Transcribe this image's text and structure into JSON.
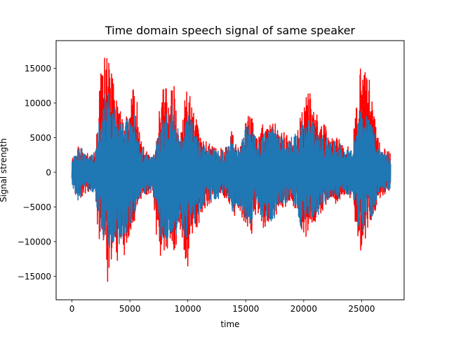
{
  "chart_data": {
    "type": "line",
    "title": "Time domain speech signal of same speaker",
    "xlabel": "time",
    "ylabel": "Signal strength",
    "xlim": [
      -1365,
      28665
    ],
    "ylim": [
      -18400,
      19000
    ],
    "x_ticks": [
      0,
      5000,
      10000,
      15000,
      20000,
      25000
    ],
    "y_ticks": [
      -15000,
      -10000,
      -5000,
      0,
      5000,
      10000,
      15000
    ],
    "x_tick_labels": [
      "0",
      "5000",
      "10000",
      "15000",
      "20000",
      "25000"
    ],
    "y_tick_labels": [
      "−15000",
      "−10000",
      "−5000",
      "0",
      "5000",
      "10000",
      "15000"
    ],
    "grid": false,
    "legend": "none",
    "x_sample_step": 250,
    "series": [
      {
        "color": "#ff0000",
        "envelope_upper": [
          2000,
          2200,
          3800,
          3900,
          3200,
          2900,
          2600,
          2800,
          3000,
          9000,
          15000,
          16800,
          16600,
          15500,
          15200,
          11800,
          10500,
          8800,
          7500,
          9000,
          10800,
          13000,
          12000,
          8500,
          5000,
          3400,
          3000,
          2500,
          2400,
          5000,
          9500,
          12500,
          14500,
          11000,
          10500,
          15000,
          9500,
          6000,
          5800,
          13200,
          12200,
          11500,
          9500,
          8500,
          6000,
          5000,
          4600,
          4200,
          4500,
          3800,
          3500,
          3400,
          3600,
          3800,
          4000,
          6500,
          6000,
          3500,
          3800,
          6500,
          7200,
          8500,
          8400,
          6500,
          5500,
          5500,
          7800,
          6700,
          8200,
          8500,
          9000,
          6000,
          6000,
          6000,
          5800,
          5500,
          5800,
          6500,
          6200,
          9000,
          10500,
          12500,
          11500,
          11000,
          10500,
          10000,
          8200,
          7200,
          6500,
          5200,
          4900,
          5500,
          5000,
          4600,
          3600,
          3800,
          3500,
          3400,
          11800,
          12500,
          17500,
          17000,
          16500,
          16000,
          14500,
          6000,
          4500,
          3200,
          3500,
          3200,
          2800
        ],
        "envelope_lower": [
          -2500,
          -3000,
          -3500,
          -3800,
          -3200,
          -3000,
          -2900,
          -3300,
          -3500,
          -9000,
          -11000,
          -12500,
          -16800,
          -15000,
          -12500,
          -12000,
          -13200,
          -11500,
          -12800,
          -10000,
          -9500,
          -8000,
          -6500,
          -5000,
          -4000,
          -3500,
          -3200,
          -3000,
          -2900,
          -9000,
          -12000,
          -13200,
          -11500,
          -12000,
          -9500,
          -11000,
          -12000,
          -8000,
          -10500,
          -12500,
          -14500,
          -8000,
          -9500,
          -9000,
          -7500,
          -6000,
          -5200,
          -5000,
          -4500,
          -4200,
          -4400,
          -4000,
          -3900,
          -4000,
          -4500,
          -6000,
          -6500,
          -5200,
          -5800,
          -7000,
          -7500,
          -8500,
          -9500,
          -6500,
          -5500,
          -7200,
          -8000,
          -8000,
          -7500,
          -8000,
          -7000,
          -5500,
          -5000,
          -5500,
          -4800,
          -4500,
          -4800,
          -5200,
          -7000,
          -9200,
          -10500,
          -9500,
          -8500,
          -8800,
          -8000,
          -7000,
          -6400,
          -5000,
          -4800,
          -4000,
          -3800,
          -4500,
          -4200,
          -3800,
          -3400,
          -3800,
          -4000,
          -3600,
          -8500,
          -10500,
          -13000,
          -10000,
          -9500,
          -8000,
          -7500,
          -4800,
          -4000,
          -3600,
          -3200,
          -3000,
          -2600
        ]
      },
      {
        "color": "#1f77b4",
        "envelope_upper": [
          2200,
          3200,
          4200,
          3800,
          3000,
          2700,
          2500,
          2600,
          2700,
          7000,
          9500,
          11500,
          12000,
          11200,
          10500,
          10000,
          9200,
          8000,
          7200,
          7800,
          8200,
          9500,
          8000,
          5500,
          4000,
          3000,
          2600,
          2300,
          2200,
          4000,
          6500,
          8500,
          9500,
          8500,
          9000,
          10500,
          8500,
          5500,
          4800,
          8000,
          8500,
          8000,
          6500,
          5500,
          4500,
          4000,
          3800,
          3600,
          3700,
          3400,
          3200,
          3100,
          3300,
          3500,
          3800,
          5500,
          5000,
          3200,
          3500,
          5800,
          6500,
          7000,
          6800,
          5500,
          5000,
          5000,
          6200,
          6000,
          6300,
          6500,
          6500,
          5500,
          5500,
          5300,
          5000,
          4800,
          5200,
          5800,
          5500,
          7500,
          8000,
          8200,
          7800,
          7500,
          7000,
          6500,
          6000,
          5500,
          5000,
          4500,
          4300,
          4500,
          4300,
          4000,
          3200,
          3400,
          3200,
          3100,
          6500,
          8000,
          9500,
          9200,
          8500,
          8000,
          7000,
          4500,
          3800,
          2800,
          3000,
          2800,
          2500
        ],
        "envelope_lower": [
          -2300,
          -4000,
          -4200,
          -3600,
          -3000,
          -2800,
          -2700,
          -2900,
          -3000,
          -7500,
          -9000,
          -10000,
          -12000,
          -11500,
          -10500,
          -11000,
          -11500,
          -10000,
          -11000,
          -9000,
          -8500,
          -7000,
          -5500,
          -4500,
          -3500,
          -3100,
          -2900,
          -2700,
          -2600,
          -7000,
          -9000,
          -10000,
          -10500,
          -11000,
          -9000,
          -10000,
          -9500,
          -7000,
          -8500,
          -10000,
          -10500,
          -7500,
          -8000,
          -7000,
          -6000,
          -5000,
          -4600,
          -4400,
          -4000,
          -3800,
          -4000,
          -3800,
          -3600,
          -3700,
          -4000,
          -5500,
          -6000,
          -4800,
          -5200,
          -6200,
          -6800,
          -7500,
          -8000,
          -6000,
          -5000,
          -6500,
          -7000,
          -7200,
          -6800,
          -9500,
          -6500,
          -5000,
          -4600,
          -5000,
          -4400,
          -4200,
          -4400,
          -4800,
          -6200,
          -8000,
          -8500,
          -8000,
          -7500,
          -7500,
          -7000,
          -6200,
          -5800,
          -4600,
          -4400,
          -3800,
          -3600,
          -4000,
          -3800,
          -3500,
          -3200,
          -3500,
          -3700,
          -3300,
          -6500,
          -8000,
          -9000,
          -8500,
          -8000,
          -7200,
          -6500,
          -4200,
          -3600,
          -3300,
          -3000,
          -2800,
          -2400
        ]
      }
    ]
  }
}
